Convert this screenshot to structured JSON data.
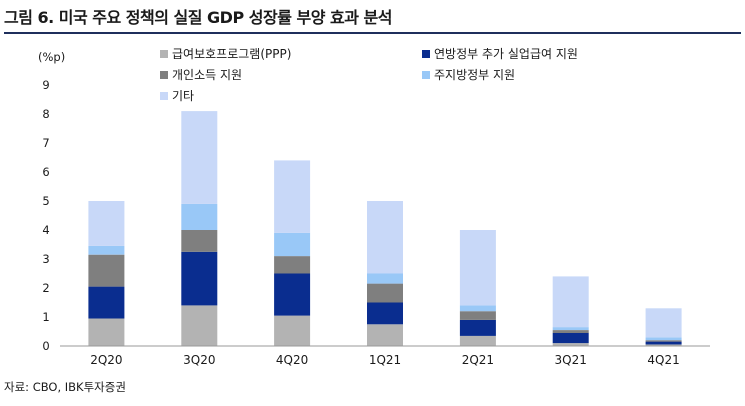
{
  "title": "그림 6. 미국 주요 정책의 실질 GDP 성장률 부양 효과 분석",
  "source": "자료: CBO, IBK투자증권",
  "chart_data": {
    "type": "bar",
    "stacked": true,
    "ylabel": "(%p)",
    "ylim": [
      0,
      9
    ],
    "yticks": [
      "0",
      "1",
      "2",
      "3",
      "4",
      "5",
      "6",
      "7",
      "8",
      "9"
    ],
    "categories": [
      "2Q20",
      "3Q20",
      "4Q20",
      "1Q21",
      "2Q21",
      "3Q21",
      "4Q21"
    ],
    "series": [
      {
        "name": "급여보호프로그램(PPP)",
        "color": "#b3b3b3",
        "values": [
          0.95,
          1.4,
          1.05,
          0.75,
          0.35,
          0.1,
          0.05
        ]
      },
      {
        "name": "연방정부 추가 실업급여 지원",
        "color": "#0a2d8f",
        "values": [
          1.1,
          1.85,
          1.45,
          0.75,
          0.55,
          0.35,
          0.1
        ]
      },
      {
        "name": "개인소득 지원",
        "color": "#7f7f7f",
        "values": [
          1.1,
          0.75,
          0.6,
          0.65,
          0.3,
          0.1,
          0.05
        ]
      },
      {
        "name": "주지방정부 지원",
        "color": "#99c8f7",
        "values": [
          0.3,
          0.9,
          0.8,
          0.35,
          0.2,
          0.1,
          0.1
        ]
      },
      {
        "name": "기타",
        "color": "#c8d8f8",
        "values": [
          1.55,
          3.2,
          2.5,
          2.5,
          2.6,
          1.75,
          1.0
        ]
      }
    ],
    "legend_position": "top"
  }
}
